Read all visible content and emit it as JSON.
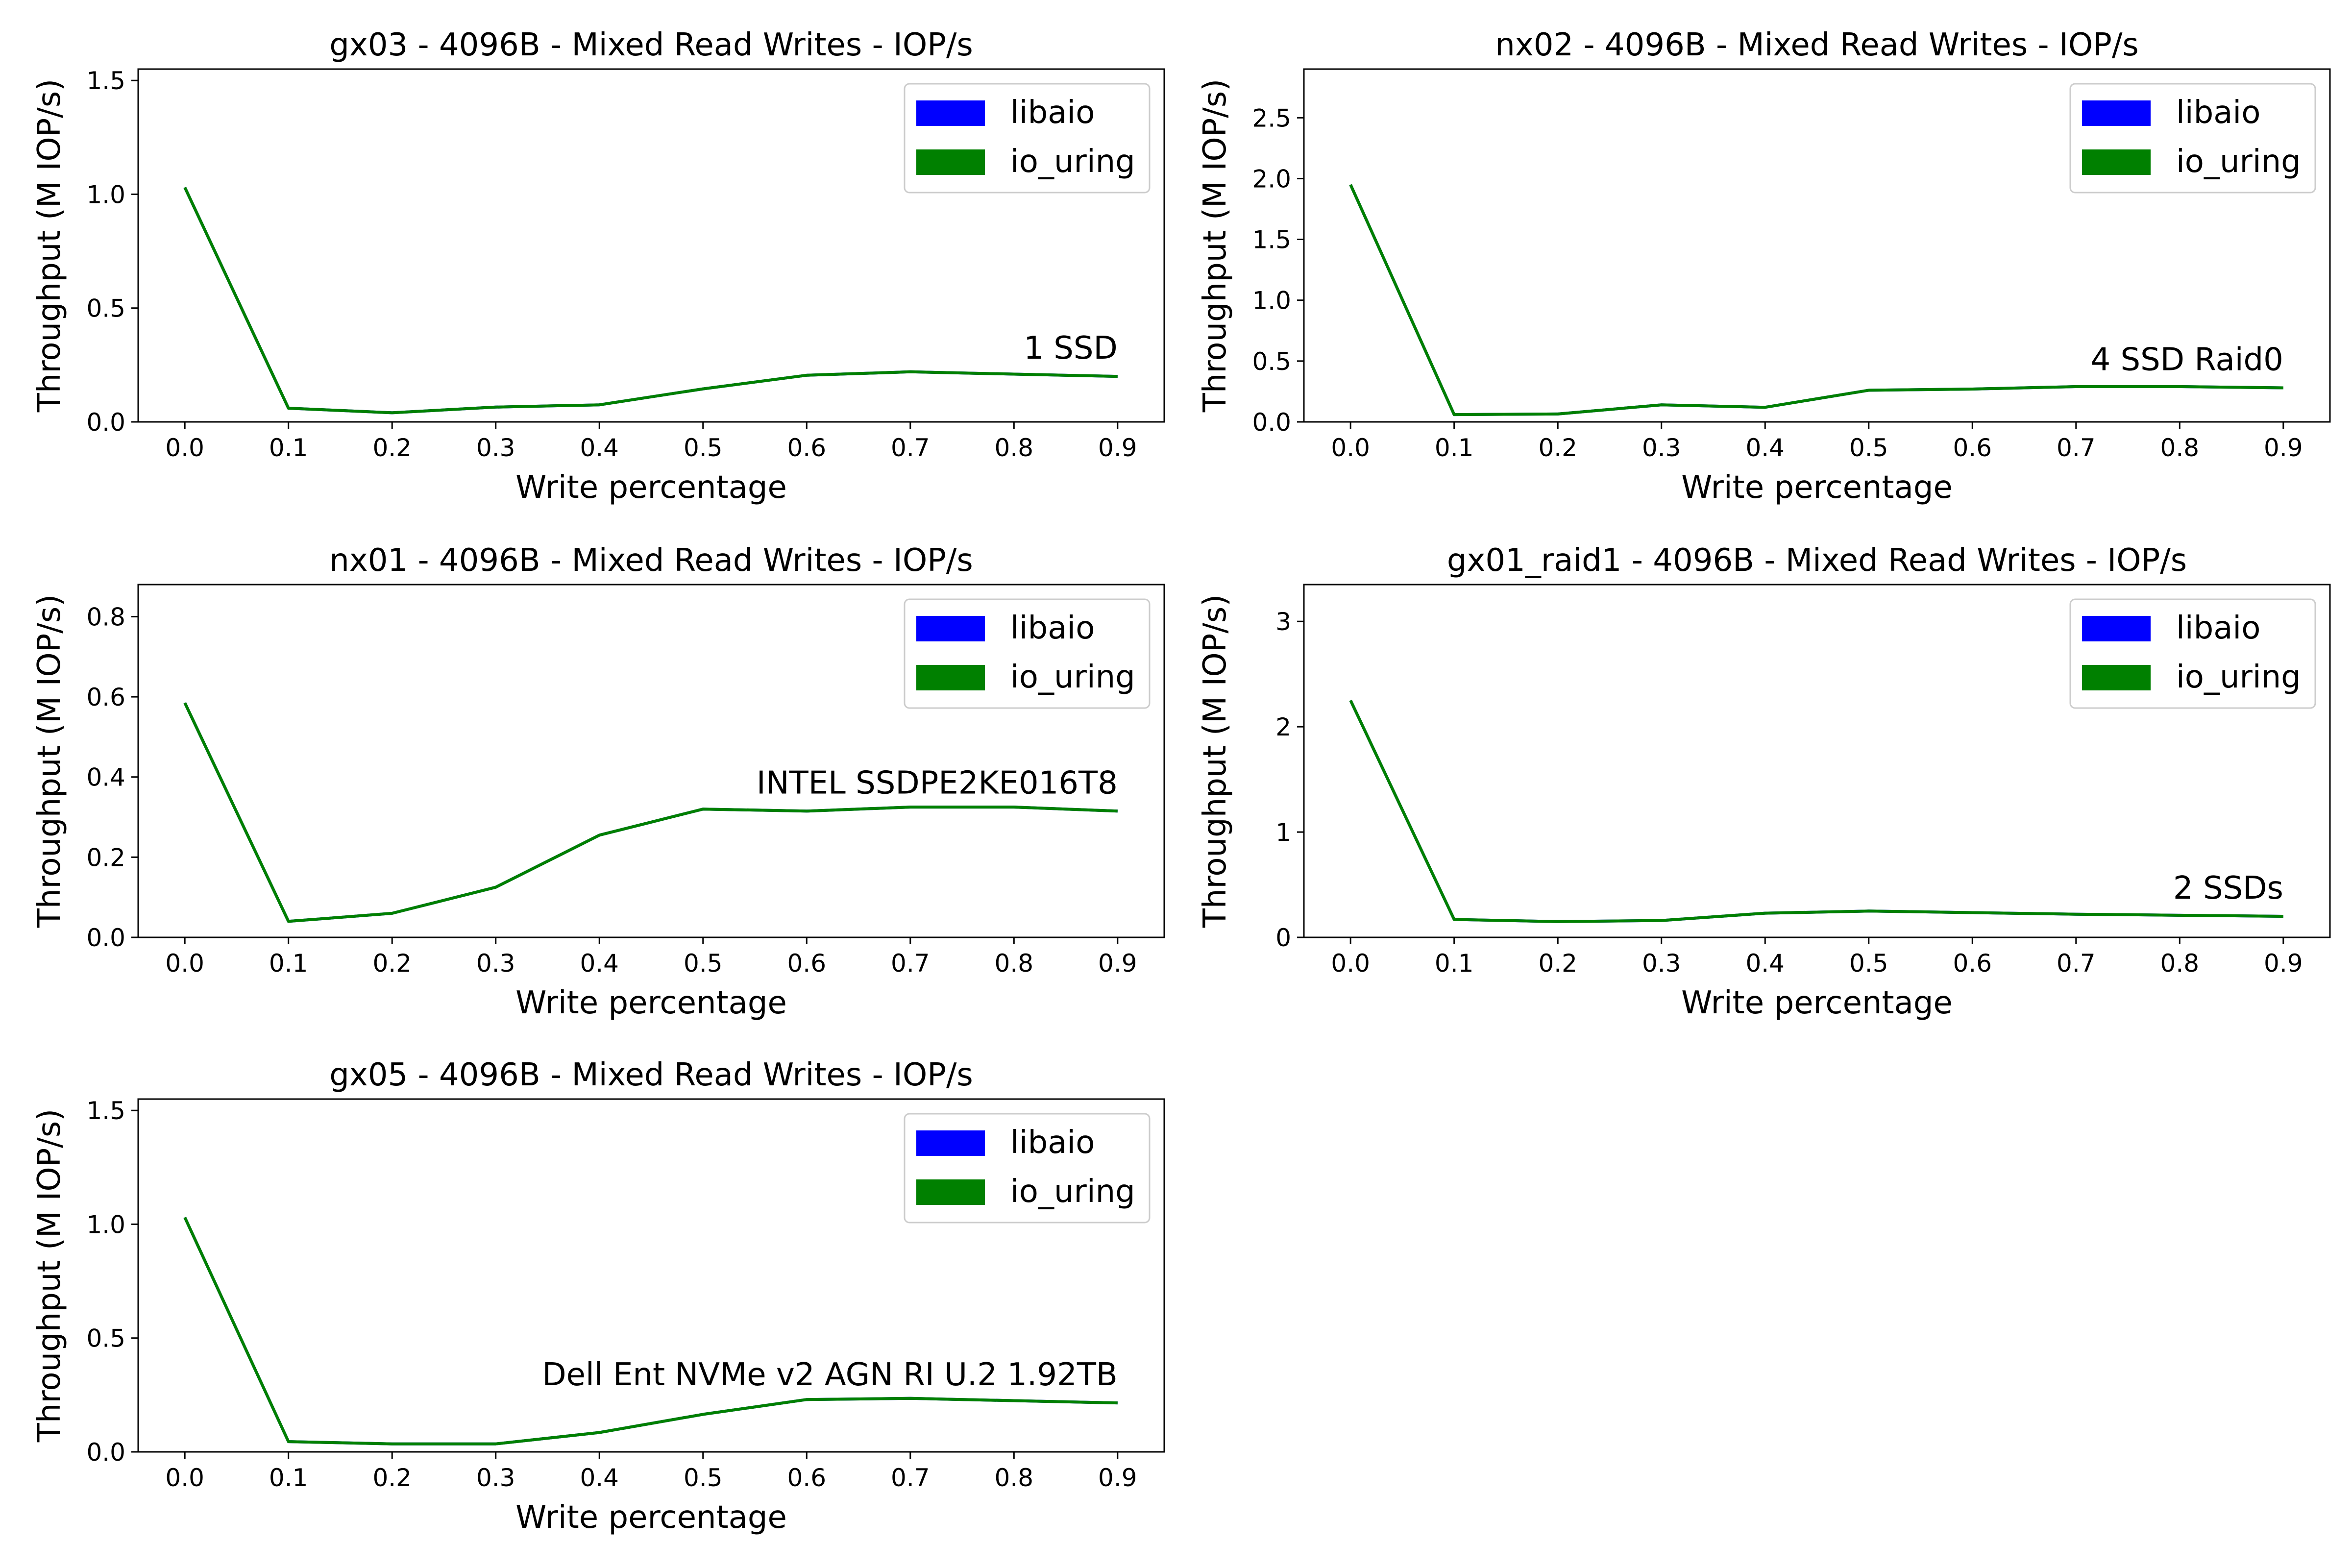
{
  "chart_data": [
    {
      "type": "line",
      "title": "gx03 - 4096B - Mixed Read Writes - IOP/s",
      "xlabel": "Write percentage",
      "ylabel": "Throughput (M IOP/s)",
      "x": [
        0.0,
        0.1,
        0.2,
        0.3,
        0.4,
        0.5,
        0.6,
        0.7,
        0.8,
        0.9
      ],
      "x_ticks": [
        "0.0",
        "0.1",
        "0.2",
        "0.3",
        "0.4",
        "0.5",
        "0.6",
        "0.7",
        "0.8",
        "0.9"
      ],
      "xlim": [
        -0.045,
        0.945
      ],
      "ylim": [
        0,
        1.55
      ],
      "y_ticks": [
        0.0,
        0.5,
        1.0,
        1.5
      ],
      "y_tick_labels": [
        "0.0",
        "0.5",
        "1.0",
        "1.5"
      ],
      "series": [
        {
          "name": "libaio",
          "color": "#0000ff",
          "values": [
            1.03,
            0.06,
            0.04,
            0.065,
            0.075,
            0.145,
            0.205,
            0.22,
            0.21,
            0.2
          ]
        },
        {
          "name": "io_uring",
          "color": "#008000",
          "values": [
            1.03,
            0.06,
            0.04,
            0.065,
            0.075,
            0.145,
            0.205,
            0.22,
            0.21,
            0.2
          ]
        }
      ],
      "annotation": "1 SSD",
      "legend": "upper right",
      "grid": false
    },
    {
      "type": "line",
      "title": "nx02 - 4096B - Mixed Read Writes - IOP/s",
      "xlabel": "Write percentage",
      "ylabel": "Throughput (M IOP/s)",
      "x": [
        0.0,
        0.1,
        0.2,
        0.3,
        0.4,
        0.5,
        0.6,
        0.7,
        0.8,
        0.9
      ],
      "x_ticks": [
        "0.0",
        "0.1",
        "0.2",
        "0.3",
        "0.4",
        "0.5",
        "0.6",
        "0.7",
        "0.8",
        "0.9"
      ],
      "xlim": [
        -0.045,
        0.945
      ],
      "ylim": [
        0,
        2.9
      ],
      "y_ticks": [
        0.0,
        0.5,
        1.0,
        1.5,
        2.0,
        2.5
      ],
      "y_tick_labels": [
        "0.0",
        "0.5",
        "1.0",
        "1.5",
        "2.0",
        "2.5"
      ],
      "series": [
        {
          "name": "libaio",
          "color": "#0000ff",
          "values": [
            1.95,
            0.06,
            0.065,
            0.14,
            0.12,
            0.26,
            0.27,
            0.29,
            0.29,
            0.28
          ]
        },
        {
          "name": "io_uring",
          "color": "#008000",
          "values": [
            1.95,
            0.06,
            0.065,
            0.14,
            0.12,
            0.26,
            0.27,
            0.29,
            0.29,
            0.28
          ]
        }
      ],
      "annotation": "4 SSD Raid0",
      "legend": "upper right",
      "grid": false
    },
    {
      "type": "line",
      "title": "nx01 - 4096B - Mixed Read Writes - IOP/s",
      "xlabel": "Write percentage",
      "ylabel": "Throughput (M IOP/s)",
      "x": [
        0.0,
        0.1,
        0.2,
        0.3,
        0.4,
        0.5,
        0.6,
        0.7,
        0.8,
        0.9
      ],
      "x_ticks": [
        "0.0",
        "0.1",
        "0.2",
        "0.3",
        "0.4",
        "0.5",
        "0.6",
        "0.7",
        "0.8",
        "0.9"
      ],
      "xlim": [
        -0.045,
        0.945
      ],
      "ylim": [
        0,
        0.88
      ],
      "y_ticks": [
        0.0,
        0.2,
        0.4,
        0.6,
        0.8
      ],
      "y_tick_labels": [
        "0.0",
        "0.2",
        "0.4",
        "0.6",
        "0.8"
      ],
      "series": [
        {
          "name": "libaio",
          "color": "#0000ff",
          "values": [
            0.585,
            0.04,
            0.06,
            0.125,
            0.255,
            0.32,
            0.315,
            0.325,
            0.325,
            0.315
          ]
        },
        {
          "name": "io_uring",
          "color": "#008000",
          "values": [
            0.585,
            0.04,
            0.06,
            0.125,
            0.255,
            0.32,
            0.315,
            0.325,
            0.325,
            0.315
          ]
        }
      ],
      "annotation": "INTEL SSDPE2KE016T8",
      "legend": "upper right",
      "grid": false
    },
    {
      "type": "line",
      "title": "gx01_raid1 - 4096B - Mixed Read Writes - IOP/s",
      "xlabel": "Write percentage",
      "ylabel": "Throughput (M IOP/s)",
      "x": [
        0.0,
        0.1,
        0.2,
        0.3,
        0.4,
        0.5,
        0.6,
        0.7,
        0.8,
        0.9
      ],
      "x_ticks": [
        "0.0",
        "0.1",
        "0.2",
        "0.3",
        "0.4",
        "0.5",
        "0.6",
        "0.7",
        "0.8",
        "0.9"
      ],
      "xlim": [
        -0.045,
        0.945
      ],
      "ylim": [
        0,
        3.35
      ],
      "y_ticks": [
        0,
        1,
        2,
        3
      ],
      "y_tick_labels": [
        "0",
        "1",
        "2",
        "3"
      ],
      "series": [
        {
          "name": "libaio",
          "color": "#0000ff",
          "values": [
            2.25,
            0.17,
            0.15,
            0.16,
            0.23,
            0.25,
            0.235,
            0.22,
            0.21,
            0.2
          ]
        },
        {
          "name": "io_uring",
          "color": "#008000",
          "values": [
            2.25,
            0.17,
            0.15,
            0.16,
            0.23,
            0.25,
            0.235,
            0.22,
            0.21,
            0.2
          ]
        }
      ],
      "annotation": "2 SSDs",
      "legend": "upper right",
      "grid": false
    },
    {
      "type": "line",
      "title": "gx05 - 4096B - Mixed Read Writes - IOP/s",
      "xlabel": "Write percentage",
      "ylabel": "Throughput (M IOP/s)",
      "x": [
        0.0,
        0.1,
        0.2,
        0.3,
        0.4,
        0.5,
        0.6,
        0.7,
        0.8,
        0.9
      ],
      "x_ticks": [
        "0.0",
        "0.1",
        "0.2",
        "0.3",
        "0.4",
        "0.5",
        "0.6",
        "0.7",
        "0.8",
        "0.9"
      ],
      "xlim": [
        -0.045,
        0.945
      ],
      "ylim": [
        0,
        1.55
      ],
      "y_ticks": [
        0.0,
        0.5,
        1.0,
        1.5
      ],
      "y_tick_labels": [
        "0.0",
        "0.5",
        "1.0",
        "1.5"
      ],
      "series": [
        {
          "name": "libaio",
          "color": "#0000ff",
          "values": [
            1.03,
            0.045,
            0.035,
            0.035,
            0.085,
            0.165,
            0.23,
            0.235,
            0.225,
            0.215
          ]
        },
        {
          "name": "io_uring",
          "color": "#008000",
          "values": [
            1.03,
            0.045,
            0.035,
            0.035,
            0.085,
            0.165,
            0.23,
            0.235,
            0.225,
            0.215
          ]
        }
      ],
      "annotation": "Dell Ent NVMe v2 AGN RI U.2 1.92TB",
      "legend": "upper right",
      "grid": false
    }
  ]
}
